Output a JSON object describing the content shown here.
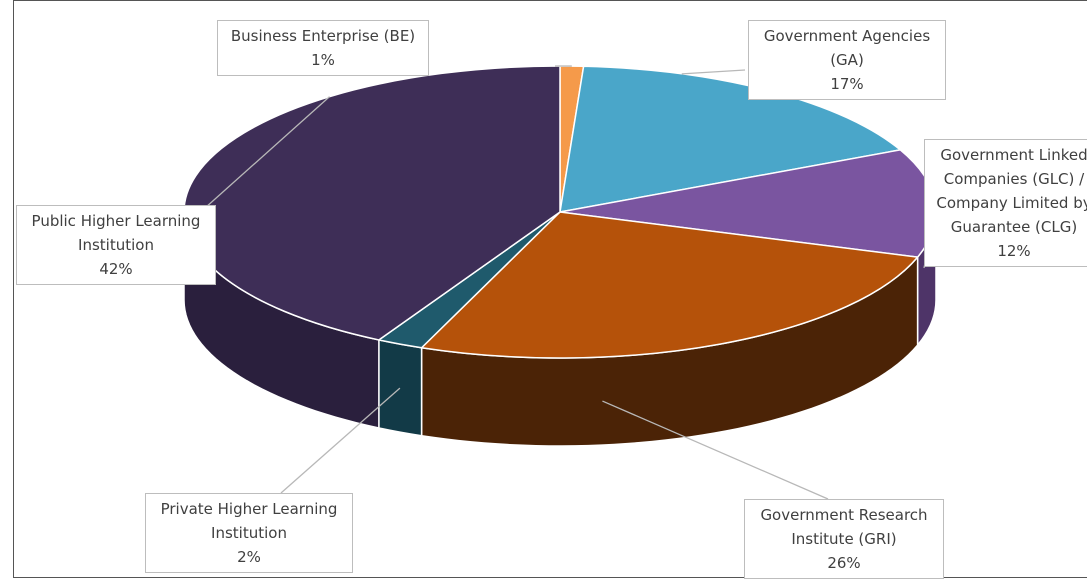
{
  "chart_data": {
    "type": "pie",
    "title": "",
    "slices": [
      {
        "label_lines": [
          "Business Enterprise (BE)"
        ],
        "pct_label": "1%",
        "value": 1,
        "color": "#f59a4a",
        "side": "#b06a28"
      },
      {
        "label_lines": [
          "Government Agencies",
          "(GA)"
        ],
        "pct_label": "17%",
        "value": 17,
        "color": "#4aa6c9",
        "side": "#2b6f8a"
      },
      {
        "label_lines": [
          "Government Linked",
          "Companies (GLC) /",
          "Company Limited by",
          "Guarantee (CLG)"
        ],
        "pct_label": "12%",
        "value": 12,
        "color": "#7a55a0",
        "side": "#4e3468"
      },
      {
        "label_lines": [
          "Government Research",
          "Institute (GRI)"
        ],
        "pct_label": "26%",
        "value": 26,
        "color": "#b5520a",
        "side": "#4b2306"
      },
      {
        "label_lines": [
          "Private Higher Learning",
          "Institution"
        ],
        "pct_label": "2%",
        "value": 2,
        "color": "#1f5a6c",
        "side": "#123a47"
      },
      {
        "label_lines": [
          "Public Higher Learning",
          "Institution"
        ],
        "pct_label": "42%",
        "value": 42,
        "color": "#3e2e57",
        "side": "#2a1f3d"
      }
    ]
  }
}
